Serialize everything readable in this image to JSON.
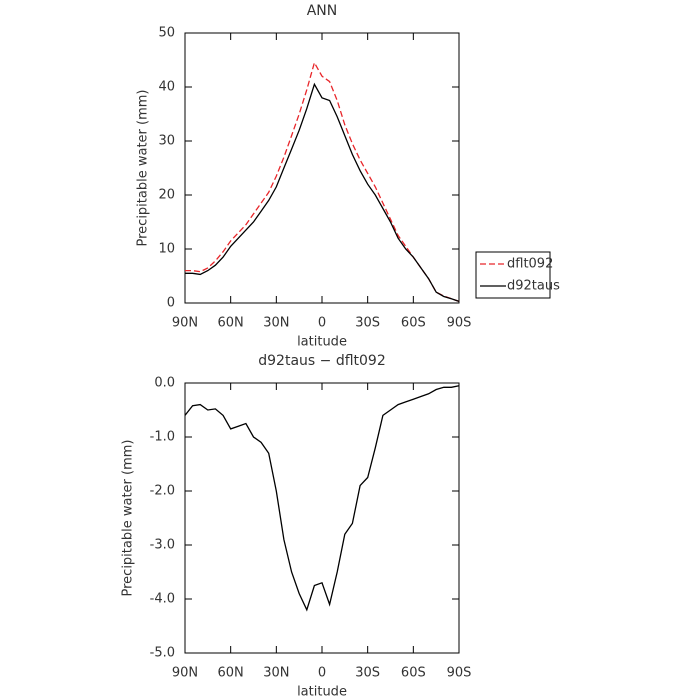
{
  "chart_data": [
    {
      "type": "line",
      "title": "ANN",
      "x_label": "latitude",
      "y_label": "Precipitable water (mm)",
      "x": [
        90,
        85,
        80,
        75,
        70,
        65,
        60,
        55,
        50,
        45,
        40,
        35,
        30,
        25,
        20,
        15,
        10,
        5,
        0,
        -5,
        -10,
        -15,
        -20,
        -25,
        -30,
        -35,
        -40,
        -45,
        -50,
        -55,
        -60,
        -65,
        -70,
        -75,
        -80,
        -85,
        -90
      ],
      "xlim": [
        90,
        -90
      ],
      "xticks": [
        {
          "value": 90,
          "label": "90N"
        },
        {
          "value": 60,
          "label": "60N"
        },
        {
          "value": 30,
          "label": "30N"
        },
        0,
        {
          "value": -30,
          "label": "30S"
        },
        {
          "value": -60,
          "label": "60S"
        },
        {
          "value": -90,
          "label": "90S"
        }
      ],
      "ylim": [
        0,
        50
      ],
      "yticks": [
        0,
        10,
        20,
        30,
        40,
        50
      ],
      "legend": "right",
      "series": [
        {
          "name": "dflt092",
          "color": "#e8262a",
          "dashed": true,
          "values": [
            6,
            6,
            5.8,
            6.5,
            7.8,
            9.5,
            11.5,
            13,
            14.5,
            16.5,
            18.5,
            20.5,
            23.5,
            27,
            31,
            35,
            39.5,
            44.5,
            42,
            41,
            37.5,
            33,
            29.5,
            26.5,
            24,
            21.5,
            18.5,
            15.5,
            12.5,
            10.5,
            8.5,
            6.5,
            4.5,
            2,
            1.3,
            0.8,
            0.3
          ]
        },
        {
          "name": "d92taus",
          "color": "#000000",
          "dashed": false,
          "values": [
            5.5,
            5.5,
            5.3,
            6,
            7,
            8.5,
            10.5,
            12,
            13.5,
            15,
            17,
            19,
            21.5,
            25,
            28.5,
            32,
            36,
            40.5,
            38,
            37.5,
            34.5,
            31,
            27.5,
            24.5,
            22,
            20,
            17.5,
            15,
            12,
            10,
            8.5,
            6.5,
            4.5,
            2,
            1.2,
            0.8,
            0.3
          ]
        }
      ]
    },
    {
      "type": "line",
      "title": "d92taus − dflt092",
      "x_label": "latitude",
      "y_label": "Precipitable water (mm)",
      "x": [
        90,
        85,
        80,
        75,
        70,
        65,
        60,
        55,
        50,
        45,
        40,
        35,
        30,
        25,
        20,
        15,
        10,
        5,
        0,
        -5,
        -10,
        -15,
        -20,
        -25,
        -30,
        -35,
        -40,
        -45,
        -50,
        -55,
        -60,
        -65,
        -70,
        -75,
        -80,
        -85,
        -90
      ],
      "xlim": [
        90,
        -90
      ],
      "xticks": [
        {
          "value": 90,
          "label": "90N"
        },
        {
          "value": 60,
          "label": "60N"
        },
        {
          "value": 30,
          "label": "30N"
        },
        0,
        {
          "value": -30,
          "label": "30S"
        },
        {
          "value": -60,
          "label": "60S"
        },
        {
          "value": -90,
          "label": "90S"
        }
      ],
      "ylim": [
        -5,
        0
      ],
      "yticks": [
        {
          "value": 0,
          "label": "0.0"
        },
        {
          "value": -1,
          "label": "-1.0"
        },
        {
          "value": -2,
          "label": "-2.0"
        },
        {
          "value": -3,
          "label": "-3.0"
        },
        {
          "value": -4,
          "label": "-4.0"
        },
        {
          "value": -5,
          "label": "-5.0"
        }
      ],
      "series": [
        {
          "color": "#000000",
          "dashed": false,
          "values": [
            -0.6,
            -0.42,
            -0.4,
            -0.5,
            -0.48,
            -0.6,
            -0.85,
            -0.8,
            -0.75,
            -1.0,
            -1.1,
            -1.3,
            -2.0,
            -2.9,
            -3.5,
            -3.9,
            -4.2,
            -3.75,
            -3.7,
            -4.1,
            -3.5,
            -2.8,
            -2.6,
            -1.9,
            -1.75,
            -1.2,
            -0.6,
            -0.5,
            -0.4,
            -0.35,
            -0.3,
            -0.25,
            -0.2,
            -0.12,
            -0.08,
            -0.08,
            -0.05
          ]
        }
      ]
    }
  ]
}
